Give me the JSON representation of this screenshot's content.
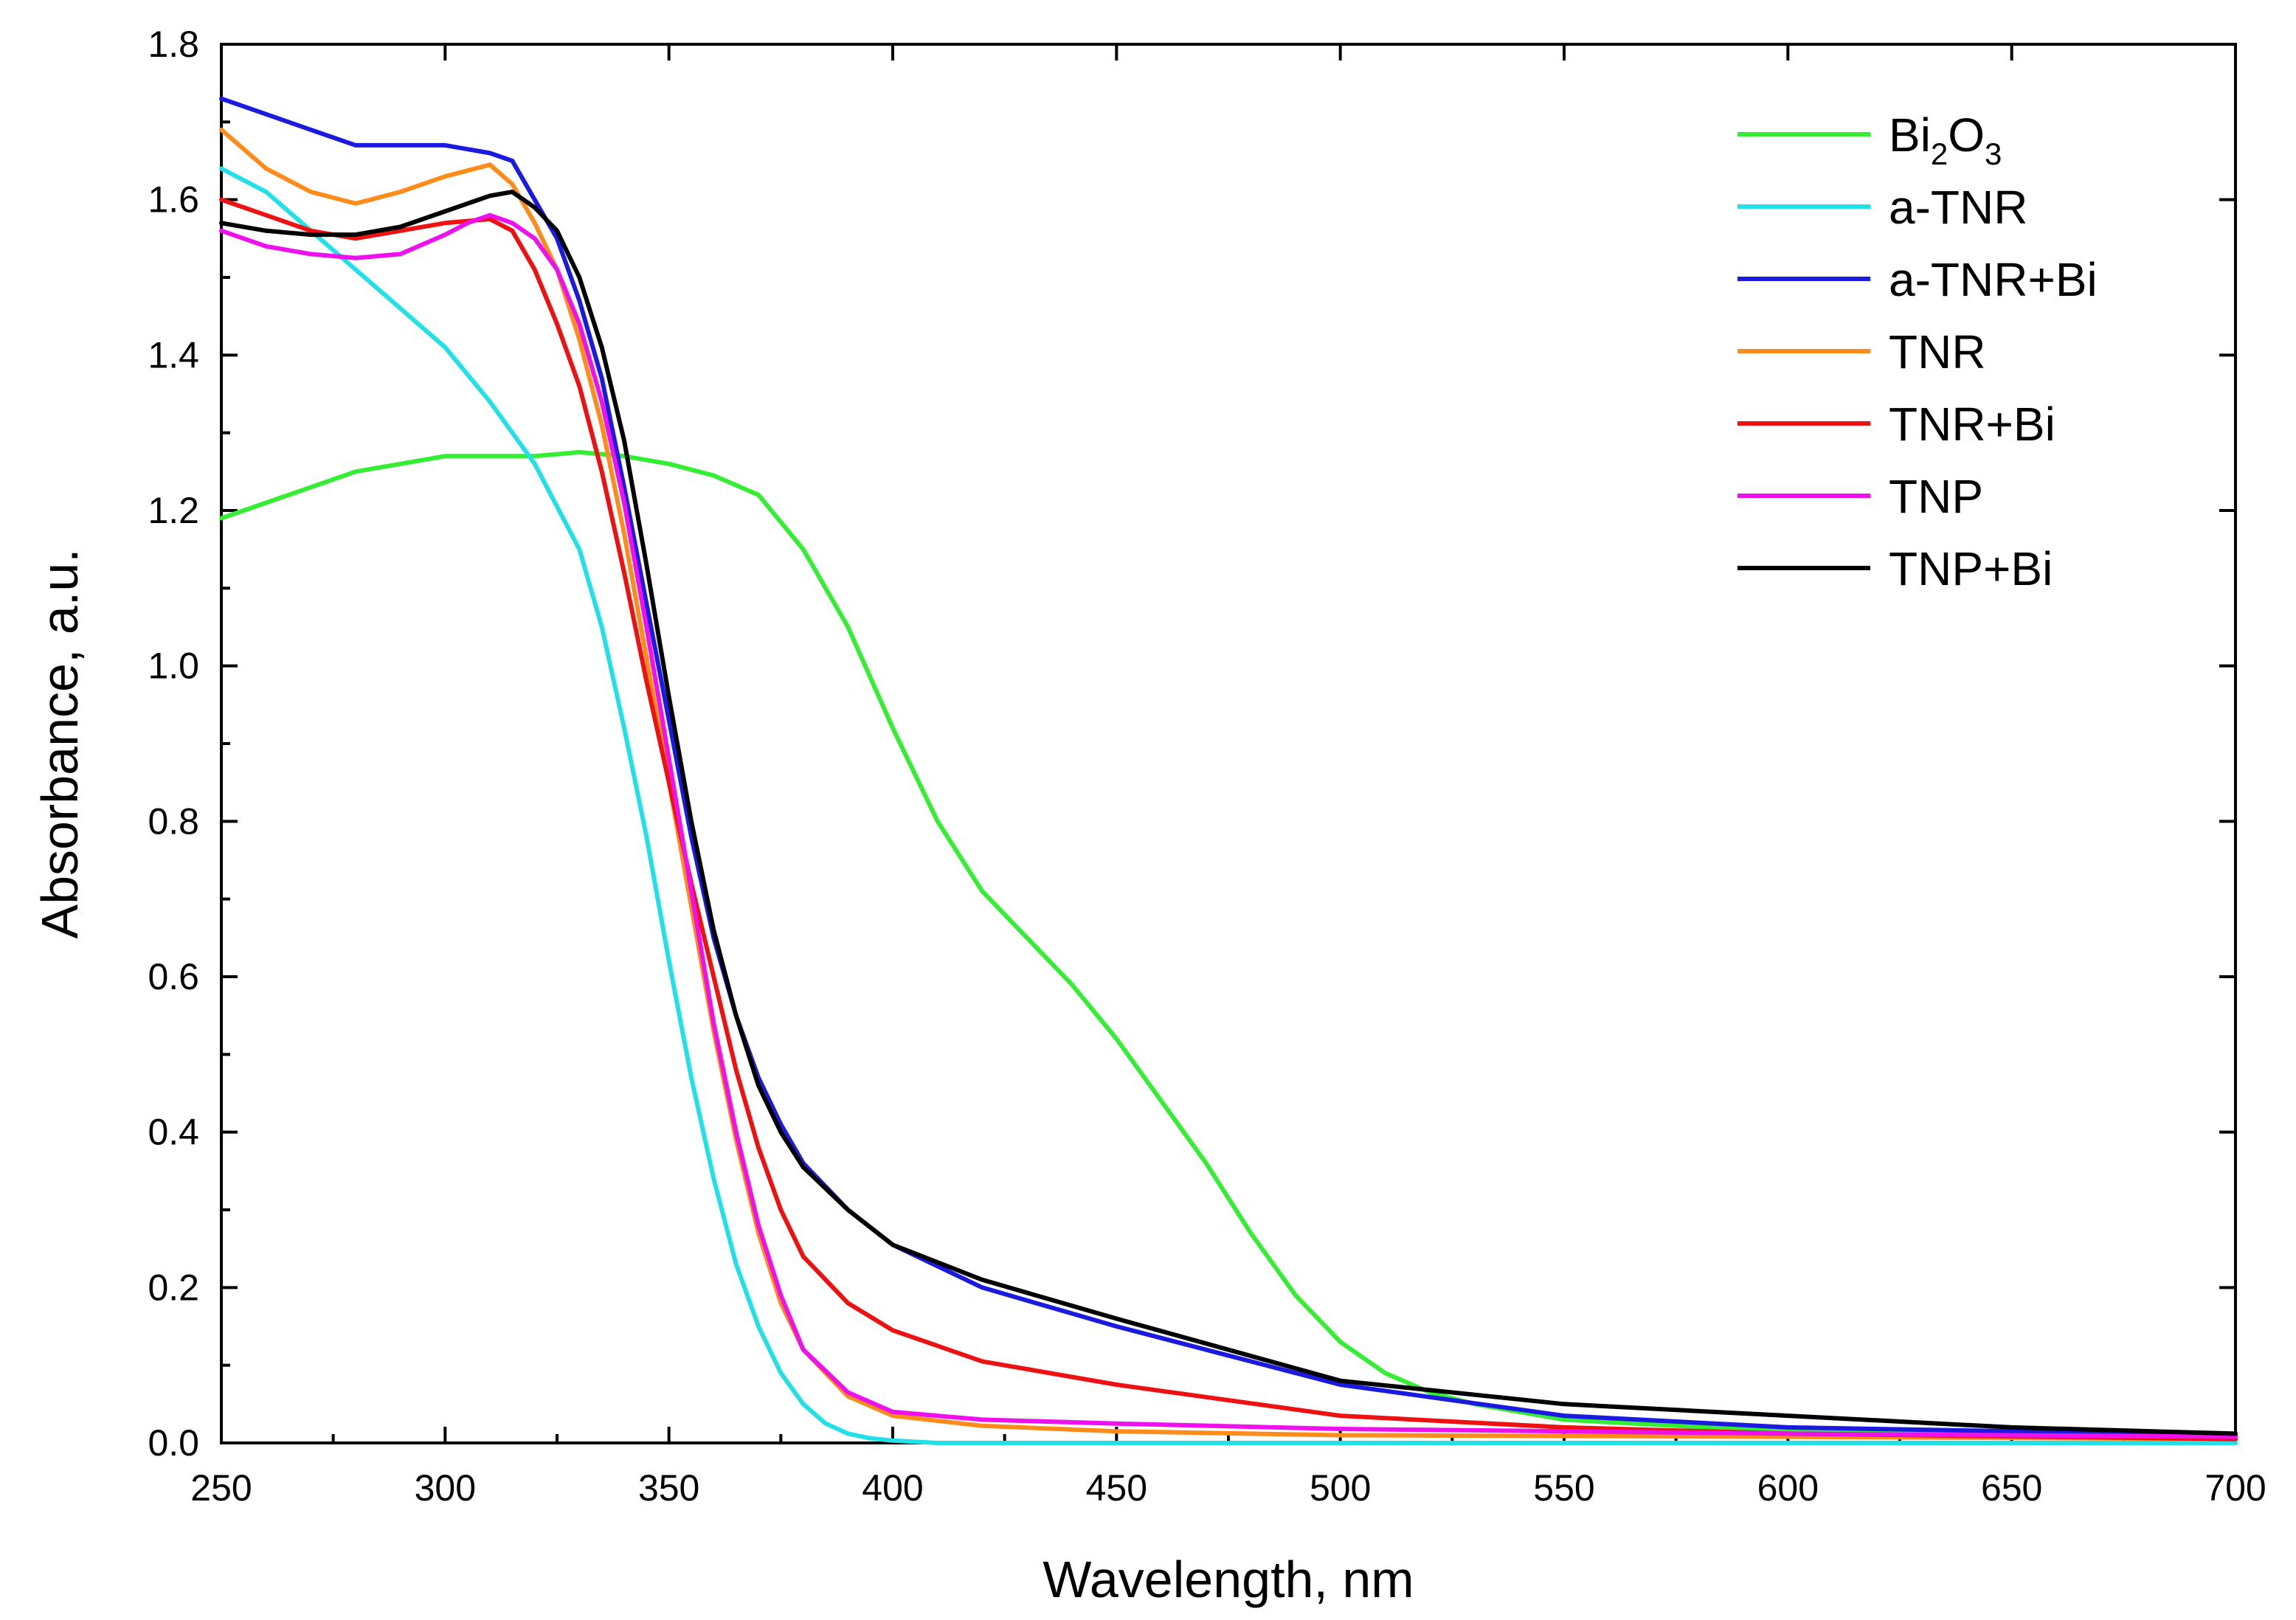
{
  "chart_data": {
    "type": "line",
    "title": "",
    "xlabel": "Wavelength, nm",
    "ylabel": "Absorbance, a.u.",
    "xlim": [
      250,
      700
    ],
    "ylim": [
      0.0,
      1.8
    ],
    "xticks": [
      250,
      300,
      350,
      400,
      450,
      500,
      550,
      600,
      650,
      700
    ],
    "xtick_labels": [
      "250",
      "300",
      "350",
      "400",
      "450",
      "500",
      "550",
      "600",
      "650",
      "700"
    ],
    "yticks": [
      0.0,
      0.2,
      0.4,
      0.6,
      0.8,
      1.0,
      1.2,
      1.4,
      1.6,
      1.8
    ],
    "ytick_labels": [
      "0.0",
      "0.2",
      "0.4",
      "0.6",
      "0.8",
      "1.0",
      "1.2",
      "1.4",
      "1.6",
      "1.8"
    ],
    "grid": false,
    "legend_position": "top-right",
    "series": [
      {
        "name": "Bi2O3",
        "label_base": "Bi",
        "label_sub1": "2",
        "label_mid": "O",
        "label_sub2": "3",
        "color": "#33ee33",
        "x": [
          250,
          260,
          270,
          280,
          290,
          300,
          310,
          320,
          330,
          340,
          350,
          360,
          370,
          380,
          390,
          400,
          410,
          420,
          430,
          440,
          450,
          460,
          470,
          480,
          490,
          500,
          510,
          520,
          530,
          540,
          550,
          575,
          600,
          650,
          700
        ],
        "y": [
          1.19,
          1.21,
          1.23,
          1.25,
          1.26,
          1.27,
          1.27,
          1.27,
          1.275,
          1.27,
          1.26,
          1.245,
          1.22,
          1.15,
          1.05,
          0.92,
          0.8,
          0.71,
          0.65,
          0.59,
          0.52,
          0.44,
          0.36,
          0.27,
          0.19,
          0.13,
          0.09,
          0.065,
          0.05,
          0.04,
          0.03,
          0.022,
          0.015,
          0.01,
          0.01
        ]
      },
      {
        "name": "a-TNR",
        "color": "#22e0e8",
        "x": [
          250,
          260,
          270,
          280,
          290,
          300,
          310,
          320,
          330,
          335,
          340,
          345,
          350,
          355,
          360,
          365,
          370,
          375,
          380,
          385,
          390,
          395,
          400,
          410,
          450,
          700
        ],
        "y": [
          1.64,
          1.61,
          1.56,
          1.51,
          1.46,
          1.41,
          1.34,
          1.26,
          1.15,
          1.05,
          0.92,
          0.78,
          0.62,
          0.47,
          0.34,
          0.23,
          0.15,
          0.09,
          0.05,
          0.025,
          0.012,
          0.006,
          0.003,
          0.0,
          0.0,
          0.0
        ]
      },
      {
        "name": "a-TNR+Bi",
        "color": "#1a1ae0",
        "x": [
          250,
          260,
          270,
          280,
          290,
          300,
          310,
          315,
          320,
          325,
          330,
          335,
          340,
          345,
          350,
          355,
          360,
          365,
          370,
          375,
          380,
          390,
          400,
          420,
          450,
          500,
          550,
          600,
          650,
          700
        ],
        "y": [
          1.73,
          1.71,
          1.69,
          1.67,
          1.67,
          1.67,
          1.66,
          1.65,
          1.6,
          1.55,
          1.47,
          1.37,
          1.23,
          1.08,
          0.93,
          0.78,
          0.65,
          0.55,
          0.47,
          0.41,
          0.36,
          0.3,
          0.255,
          0.2,
          0.15,
          0.075,
          0.035,
          0.02,
          0.015,
          0.01
        ]
      },
      {
        "name": "TNR",
        "color": "#ff8c1a",
        "x": [
          250,
          260,
          270,
          280,
          290,
          300,
          310,
          315,
          320,
          325,
          330,
          335,
          340,
          345,
          350,
          355,
          360,
          365,
          370,
          375,
          380,
          390,
          400,
          420,
          450,
          500,
          600,
          700
        ],
        "y": [
          1.69,
          1.64,
          1.61,
          1.595,
          1.61,
          1.63,
          1.645,
          1.62,
          1.57,
          1.51,
          1.42,
          1.31,
          1.17,
          1.01,
          0.85,
          0.69,
          0.53,
          0.39,
          0.27,
          0.18,
          0.12,
          0.06,
          0.035,
          0.022,
          0.015,
          0.01,
          0.008,
          0.005
        ]
      },
      {
        "name": "TNR+Bi",
        "color": "#ee1111",
        "x": [
          250,
          260,
          270,
          280,
          290,
          300,
          310,
          315,
          320,
          325,
          330,
          335,
          340,
          345,
          350,
          355,
          360,
          365,
          370,
          375,
          380,
          390,
          400,
          420,
          450,
          500,
          550,
          600,
          700
        ],
        "y": [
          1.6,
          1.58,
          1.56,
          1.55,
          1.56,
          1.57,
          1.575,
          1.56,
          1.51,
          1.44,
          1.36,
          1.25,
          1.12,
          0.98,
          0.85,
          0.72,
          0.6,
          0.48,
          0.38,
          0.3,
          0.24,
          0.18,
          0.145,
          0.105,
          0.075,
          0.035,
          0.02,
          0.012,
          0.005
        ]
      },
      {
        "name": "TNP",
        "color": "#ee11ee",
        "x": [
          250,
          260,
          270,
          280,
          290,
          300,
          305,
          310,
          315,
          320,
          325,
          330,
          335,
          340,
          345,
          350,
          355,
          360,
          365,
          370,
          375,
          380,
          390,
          400,
          420,
          450,
          500,
          600,
          700
        ],
        "y": [
          1.56,
          1.54,
          1.53,
          1.525,
          1.53,
          1.555,
          1.57,
          1.58,
          1.57,
          1.55,
          1.51,
          1.44,
          1.34,
          1.21,
          1.05,
          0.88,
          0.71,
          0.54,
          0.4,
          0.28,
          0.19,
          0.12,
          0.065,
          0.04,
          0.03,
          0.025,
          0.018,
          0.012,
          0.008
        ]
      },
      {
        "name": "TNP+Bi",
        "color": "#000000",
        "x": [
          250,
          260,
          270,
          280,
          290,
          300,
          310,
          315,
          320,
          325,
          330,
          335,
          340,
          345,
          350,
          355,
          360,
          365,
          370,
          375,
          380,
          390,
          400,
          420,
          450,
          500,
          550,
          600,
          650,
          700
        ],
        "y": [
          1.57,
          1.56,
          1.555,
          1.555,
          1.565,
          1.585,
          1.605,
          1.61,
          1.59,
          1.56,
          1.5,
          1.41,
          1.29,
          1.13,
          0.96,
          0.8,
          0.66,
          0.55,
          0.46,
          0.4,
          0.355,
          0.3,
          0.255,
          0.21,
          0.16,
          0.08,
          0.05,
          0.035,
          0.02,
          0.012
        ]
      }
    ]
  }
}
